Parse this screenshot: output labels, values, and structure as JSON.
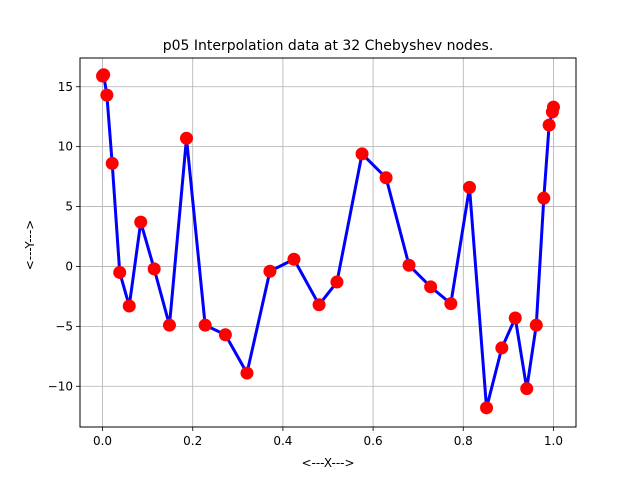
{
  "chart_data": {
    "type": "line",
    "title": "p05 Interpolation data at 32 Chebyshev nodes.",
    "xlabel": "<---X--->",
    "ylabel": "<---Y--->",
    "xlim": [
      -0.05,
      1.05
    ],
    "ylim": [
      -13.4,
      17.4
    ],
    "grid": true,
    "xticks": [
      0.0,
      0.2,
      0.4,
      0.6,
      0.8,
      1.0
    ],
    "xtick_labels": [
      "0.0",
      "0.2",
      "0.4",
      "0.6",
      "0.8",
      "1.0"
    ],
    "yticks": [
      -10,
      -5,
      0,
      5,
      10,
      15
    ],
    "ytick_labels": [
      "−10",
      "−5",
      "0",
      "5",
      "10",
      "15"
    ],
    "series": [
      {
        "line_color": "#0000ff",
        "marker_color": "#ff0000",
        "x": [
          0.0,
          0.0024,
          0.0096,
          0.0214,
          0.0381,
          0.0592,
          0.0847,
          0.1145,
          0.1484,
          0.1862,
          0.2276,
          0.2724,
          0.3203,
          0.3712,
          0.4245,
          0.4802,
          0.5198,
          0.5755,
          0.6288,
          0.6797,
          0.7276,
          0.7724,
          0.8138,
          0.8516,
          0.8855,
          0.9153,
          0.9408,
          0.9619,
          0.9786,
          0.9904,
          0.9976,
          1.0
        ],
        "y": [
          15.9,
          16.0,
          14.3,
          8.6,
          -0.5,
          -3.3,
          3.7,
          -0.2,
          -4.9,
          10.7,
          -4.9,
          -5.7,
          -8.9,
          -0.4,
          0.6,
          -3.2,
          -1.3,
          9.4,
          7.4,
          0.1,
          -1.7,
          -3.1,
          6.6,
          -11.8,
          -6.8,
          -4.3,
          -10.2,
          -4.9,
          5.7,
          11.8,
          12.9,
          13.3
        ]
      }
    ]
  }
}
